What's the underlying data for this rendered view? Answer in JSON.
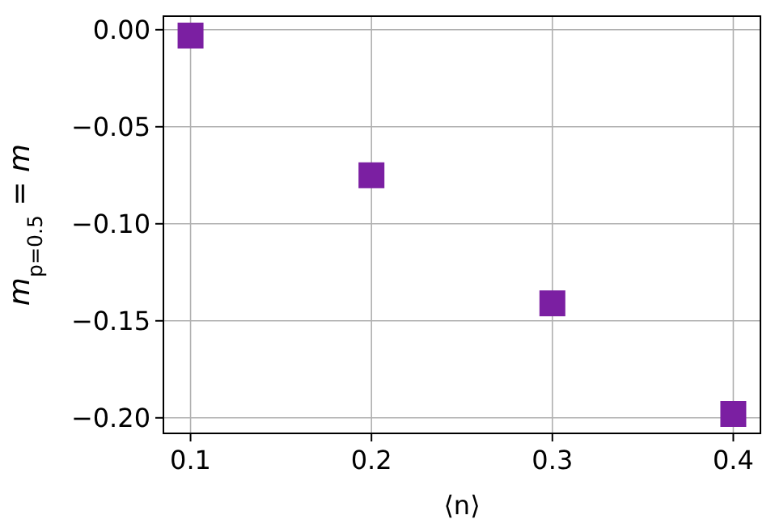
{
  "chart_data": {
    "type": "scatter",
    "xlabel": "⟨n⟩",
    "ylabel": "m$_{p=0.5}$ = m",
    "x": [
      0.1,
      0.2,
      0.3,
      0.4
    ],
    "series": [
      {
        "color": "#7b1fa2",
        "values": [
          -0.003,
          -0.075,
          -0.141,
          -0.198
        ]
      }
    ],
    "xlim": [
      0.085,
      0.415
    ],
    "xticks": [
      0.1,
      0.2,
      0.3,
      0.4
    ],
    "ylim": [
      -0.208,
      0.007
    ],
    "yticks": [
      {
        "value": 0,
        "label": "0.00"
      },
      {
        "value": -0.05,
        "label": "−0.05"
      },
      {
        "value": -0.1,
        "label": "−0.10"
      },
      {
        "value": -0.15,
        "label": "−0.15"
      },
      {
        "value": -0.2,
        "label": "−0.20"
      }
    ],
    "grid": true,
    "marker": "square"
  }
}
